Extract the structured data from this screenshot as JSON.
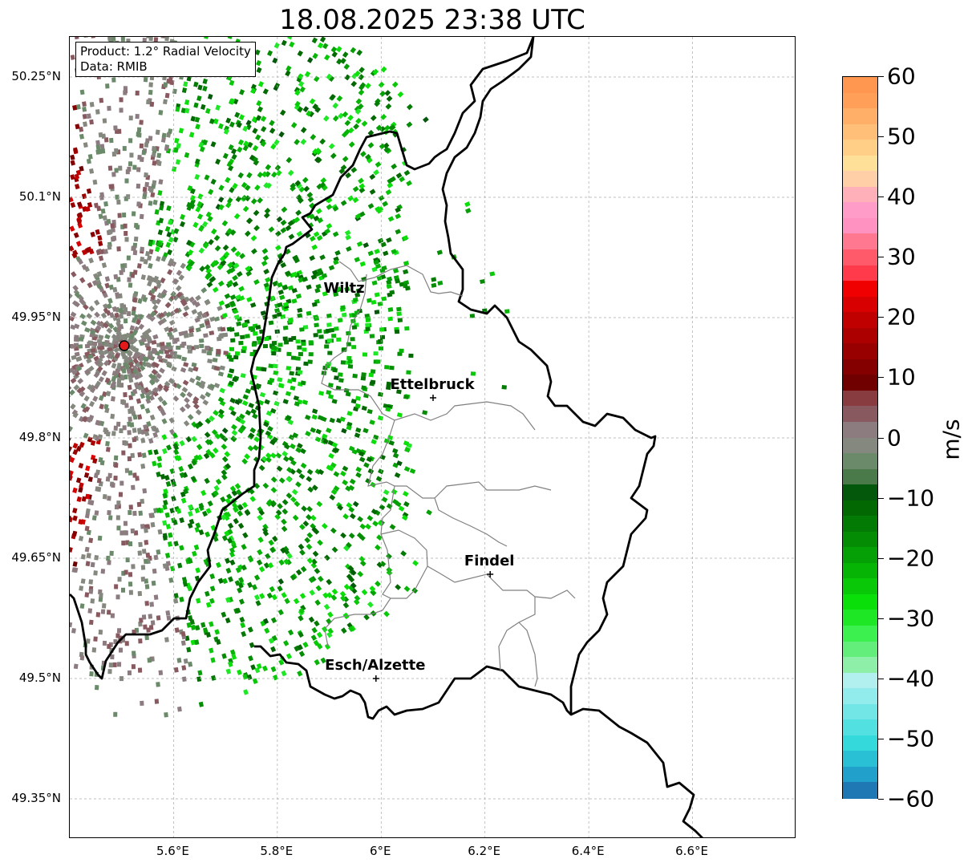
{
  "title": "18.08.2025 23:38 UTC",
  "info_box": {
    "product": "Product: 1.2° Radial Velocity",
    "source": "Data: RMIB"
  },
  "axes": {
    "lat_labels": [
      "50.25°N",
      "50.1°N",
      "49.95°N",
      "49.8°N",
      "49.65°N",
      "49.5°N",
      "49.35°N"
    ],
    "lon_labels": [
      "5.6°E",
      "5.8°E",
      "6°E",
      "6.2°E",
      "6.4°E",
      "6.6°E"
    ],
    "lon_range": [
      5.4,
      6.8
    ],
    "lat_range": [
      49.3,
      50.3
    ]
  },
  "cities": [
    {
      "name": "Wiltz",
      "lon": 5.93,
      "lat": 49.97,
      "marker": false
    },
    {
      "name": "Ettelbruck",
      "lon": 6.1,
      "lat": 49.85,
      "marker": true
    },
    {
      "name": "Findel",
      "lon": 6.21,
      "lat": 49.63,
      "marker": true
    },
    {
      "name": "Esch/Alzette",
      "lon": 5.99,
      "lat": 49.5,
      "marker": true
    }
  ],
  "radar_site": {
    "lon": 5.505,
    "lat": 49.915,
    "color": "#e31a1c"
  },
  "colorbar": {
    "unit": "m/s",
    "min": -60,
    "max": 60,
    "tick_labels": [
      "60",
      "50",
      "40",
      "30",
      "20",
      "10",
      "0",
      "−10",
      "−20",
      "−30",
      "−40",
      "−50",
      "−60"
    ],
    "tick_values": [
      60,
      50,
      40,
      30,
      20,
      10,
      0,
      -10,
      -20,
      -30,
      -40,
      -50,
      -60
    ],
    "colors": [
      "#1f78b4",
      "#22a0cc",
      "#29c0d6",
      "#34d9dc",
      "#52e0e0",
      "#72e6e6",
      "#93ecec",
      "#b2f0f0",
      "#8ef0a8",
      "#63ee7c",
      "#3cf050",
      "#1ee826",
      "#0adf0a",
      "#08c808",
      "#06b406",
      "#05a005",
      "#048c04",
      "#037a03",
      "#026802",
      "#03580c",
      "#4a7a4a",
      "#6a8a6a",
      "#84887e",
      "#8c7c80",
      "#885a60",
      "#883c40",
      "#700000",
      "#840000",
      "#980000",
      "#ac0000",
      "#c00000",
      "#d80000",
      "#f00000",
      "#ff3a4a",
      "#ff5a6a",
      "#ff7890",
      "#ff92c0",
      "#ff9cc8",
      "#ffb0b8",
      "#ffd0a8",
      "#ffe098",
      "#ffcf88",
      "#ffbf78",
      "#ffaf68",
      "#ff9f58",
      "#ff9750"
    ]
  }
}
